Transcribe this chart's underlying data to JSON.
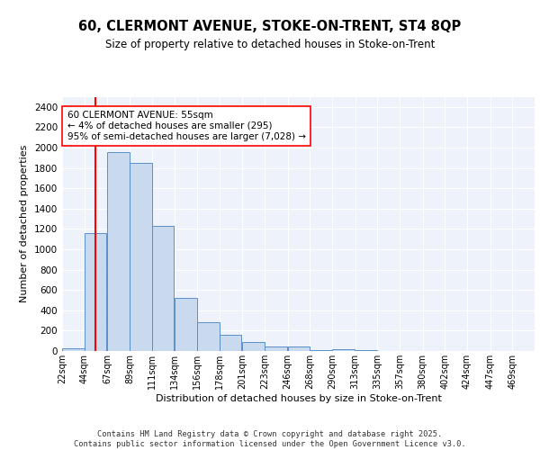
{
  "title1": "60, CLERMONT AVENUE, STOKE-ON-TRENT, ST4 8QP",
  "title2": "Size of property relative to detached houses in Stoke-on-Trent",
  "xlabel": "Distribution of detached houses by size in Stoke-on-Trent",
  "ylabel": "Number of detached properties",
  "bin_labels": [
    "22sqm",
    "44sqm",
    "67sqm",
    "89sqm",
    "111sqm",
    "134sqm",
    "156sqm",
    "178sqm",
    "201sqm",
    "223sqm",
    "246sqm",
    "268sqm",
    "290sqm",
    "313sqm",
    "335sqm",
    "357sqm",
    "380sqm",
    "402sqm",
    "424sqm",
    "447sqm",
    "469sqm"
  ],
  "bin_edges": [
    22,
    44,
    67,
    89,
    111,
    134,
    156,
    178,
    201,
    223,
    246,
    268,
    290,
    313,
    335,
    357,
    380,
    402,
    424,
    447,
    469
  ],
  "bar_heights": [
    25,
    1160,
    1960,
    1850,
    1230,
    520,
    280,
    155,
    90,
    45,
    40,
    5,
    20,
    5,
    3,
    2,
    2,
    1,
    1,
    1,
    2
  ],
  "bar_color": "#c9d9ee",
  "bar_edge_color": "#5b8fc9",
  "red_line_x": 55,
  "annotation_title": "60 CLERMONT AVENUE: 55sqm",
  "annotation_line1": "← 4% of detached houses are smaller (295)",
  "annotation_line2": "95% of semi-detached houses are larger (7,028) →",
  "background_color": "#eef2fb",
  "grid_color": "#ffffff",
  "footer1": "Contains HM Land Registry data © Crown copyright and database right 2025.",
  "footer2": "Contains public sector information licensed under the Open Government Licence v3.0.",
  "ylim": [
    0,
    2500
  ],
  "yticks": [
    0,
    200,
    400,
    600,
    800,
    1000,
    1200,
    1400,
    1600,
    1800,
    2000,
    2200,
    2400
  ]
}
